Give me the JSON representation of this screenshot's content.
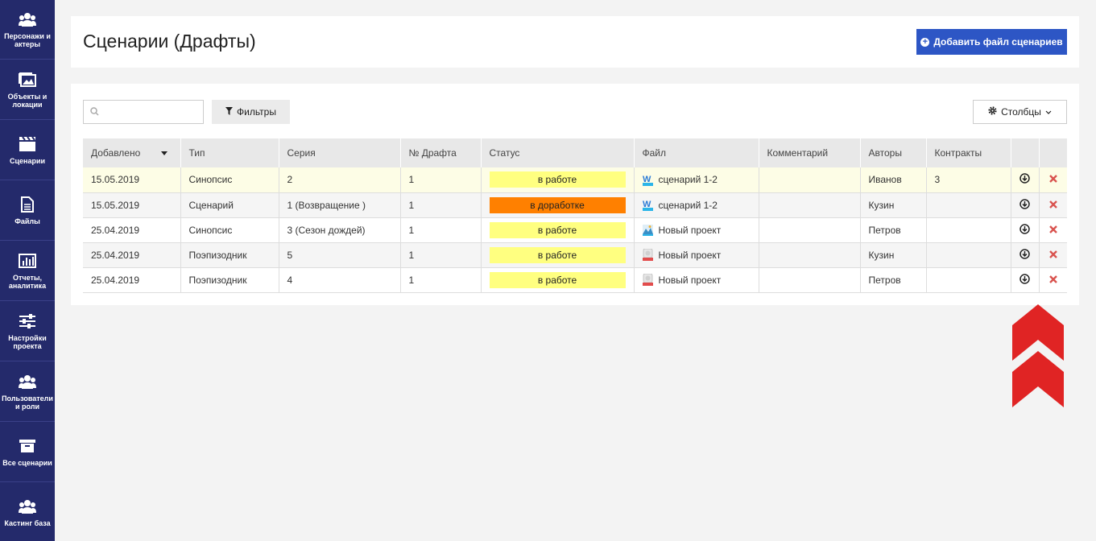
{
  "sidebar": {
    "items": [
      {
        "label": "Персонажи и актеры",
        "icon": "users-icon"
      },
      {
        "label": "Объекты и локации",
        "icon": "image-icon"
      },
      {
        "label": "Сценарии",
        "icon": "clapperboard-icon"
      },
      {
        "label": "Файлы",
        "icon": "file-icon"
      },
      {
        "label": "Отчеты, аналитика",
        "icon": "bar-chart-icon"
      },
      {
        "label": "Настройки проекта",
        "icon": "sliders-icon"
      },
      {
        "label": "Пользователи и роли",
        "icon": "users-icon"
      },
      {
        "label": "Все сценарии",
        "icon": "archive-icon"
      },
      {
        "label": "Кастинг база",
        "icon": "users-icon"
      }
    ]
  },
  "header": {
    "title": "Сценарии (Драфты)",
    "add_button": "Добавить файл сценариев"
  },
  "toolbar": {
    "search_placeholder": "",
    "filters_label": "Фильтры",
    "columns_label": "Столбцы"
  },
  "table": {
    "columns": [
      "Добавлено",
      "Тип",
      "Серия",
      "№ Драфта",
      "Статус",
      "Файл",
      "Комментарий",
      "Авторы",
      "Контракты"
    ],
    "rows": [
      {
        "added": "15.05.2019",
        "type": "Синопсис",
        "series": "2",
        "draft": "1",
        "status": "в работе",
        "status_color": "#ffff80",
        "file": "сценарий 1-2",
        "file_icon": "word-doc-icon",
        "comment": "",
        "authors": "Иванов",
        "contracts": "3"
      },
      {
        "added": "15.05.2019",
        "type": "Сценарий",
        "series": "1 (Возвращение )",
        "draft": "1",
        "status": "в доработке",
        "status_color": "#ff8000",
        "file": "сценарий 1-2",
        "file_icon": "word-doc-icon",
        "comment": "",
        "authors": "Кузин",
        "contracts": ""
      },
      {
        "added": "25.04.2019",
        "type": "Синопсис",
        "series": "3 (Сезон дождей)",
        "draft": "1",
        "status": "в работе",
        "status_color": "#ffff80",
        "file": "Новый проект",
        "file_icon": "image-file-icon",
        "comment": "",
        "authors": "Петров",
        "contracts": ""
      },
      {
        "added": "25.04.2019",
        "type": "Поэпизодник",
        "series": "5",
        "draft": "1",
        "status": "в работе",
        "status_color": "#ffff80",
        "file": "Новый проект",
        "file_icon": "mpx-file-icon",
        "comment": "",
        "authors": "Кузин",
        "contracts": ""
      },
      {
        "added": "25.04.2019",
        "type": "Поэпизодник",
        "series": "4",
        "draft": "1",
        "status": "в работе",
        "status_color": "#ffff80",
        "file": "Новый проект",
        "file_icon": "mpx-file-icon",
        "comment": "",
        "authors": "Петров",
        "contracts": ""
      }
    ]
  },
  "colors": {
    "sidebar_bg": "#242a6b",
    "primary_button": "#2d56c5",
    "status_in_work": "#ffff80",
    "status_rework": "#ff8000",
    "delete_red": "#d9534f",
    "chevron_red": "#e02424"
  }
}
